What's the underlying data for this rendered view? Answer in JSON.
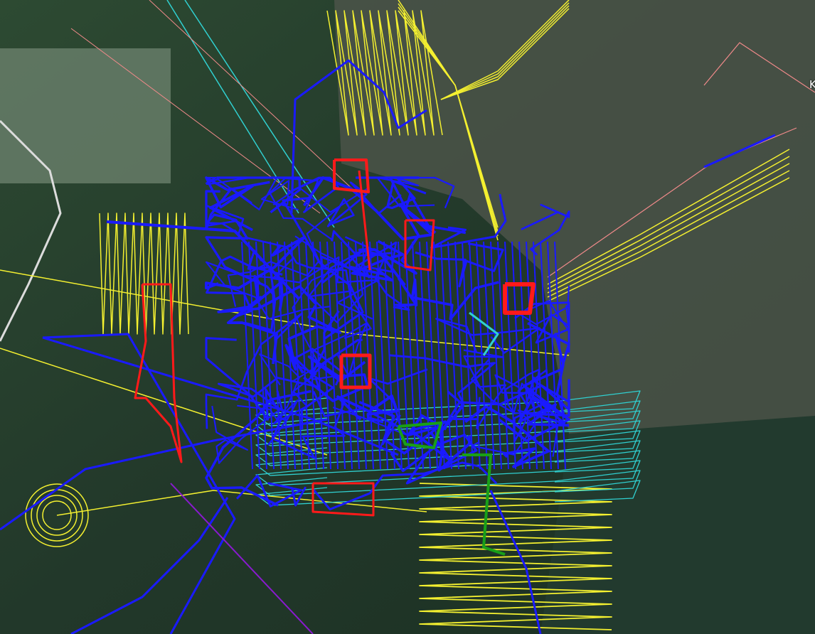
{
  "map": {
    "type": "satellite",
    "place_label": "K",
    "track_colors": {
      "blue": "#1a1aff",
      "red": "#ff1a1a",
      "yellow": "#f4f030",
      "cyan": "#30d0d0",
      "pink": "#f08a8a",
      "green": "#18a018",
      "road": "#dcdcdc"
    }
  }
}
